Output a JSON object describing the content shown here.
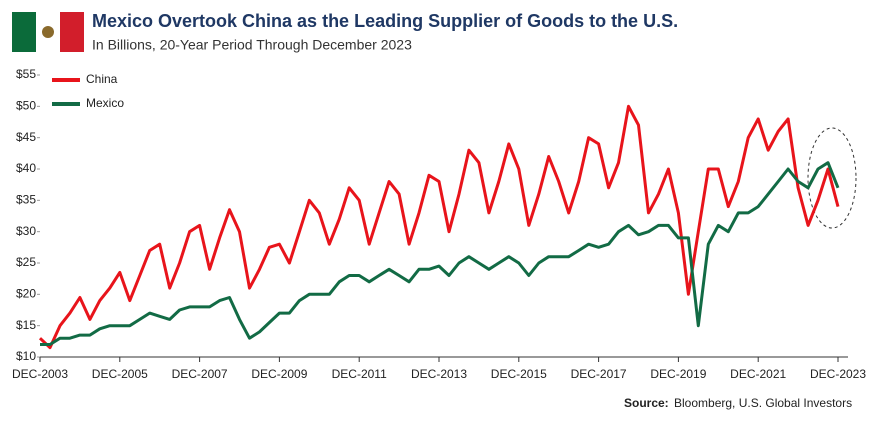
{
  "chart_data": {
    "type": "line",
    "title": "Mexico Overtook China as the Leading Supplier of Goods to the U.S.",
    "subtitle": "In Billions, 20-Year Period Through December 2023",
    "source_label": "Source:",
    "source": "Bloomberg, U.S. Global Investors",
    "x": [
      2003.92,
      2004.17,
      2004.42,
      2004.67,
      2004.92,
      2005.17,
      2005.42,
      2005.67,
      2005.92,
      2006.17,
      2006.42,
      2006.67,
      2006.92,
      2007.17,
      2007.42,
      2007.67,
      2007.92,
      2008.17,
      2008.42,
      2008.67,
      2008.92,
      2009.17,
      2009.42,
      2009.67,
      2009.92,
      2010.17,
      2010.42,
      2010.67,
      2010.92,
      2011.17,
      2011.42,
      2011.67,
      2011.92,
      2012.17,
      2012.42,
      2012.67,
      2012.92,
      2013.17,
      2013.42,
      2013.67,
      2013.92,
      2014.17,
      2014.42,
      2014.67,
      2014.92,
      2015.17,
      2015.42,
      2015.67,
      2015.92,
      2016.17,
      2016.42,
      2016.67,
      2016.92,
      2017.17,
      2017.42,
      2017.67,
      2017.92,
      2018.17,
      2018.42,
      2018.67,
      2018.92,
      2019.17,
      2019.42,
      2019.67,
      2019.92,
      2020.17,
      2020.42,
      2020.67,
      2020.92,
      2021.17,
      2021.42,
      2021.67,
      2021.92,
      2022.17,
      2022.42,
      2022.67,
      2022.92,
      2023.17,
      2023.42,
      2023.67,
      2023.92
    ],
    "series": [
      {
        "name": "China",
        "color": "#e8141b",
        "values": [
          13,
          11.5,
          15,
          17,
          19.5,
          16,
          19,
          21,
          23.5,
          19,
          23,
          27,
          28,
          21,
          25,
          30,
          31,
          24,
          29,
          33.5,
          30,
          21,
          24,
          27.5,
          28,
          25,
          30,
          35,
          33,
          28,
          32,
          37,
          35,
          28,
          33,
          38,
          36,
          28,
          33,
          39,
          38,
          30,
          36,
          43,
          41,
          33,
          38,
          44,
          40,
          31,
          36,
          42,
          38,
          33,
          38,
          45,
          44,
          37,
          41,
          50,
          47,
          33,
          36,
          40,
          33,
          20,
          30,
          40,
          40,
          34,
          38,
          45,
          48,
          43,
          46,
          48,
          37,
          31,
          35,
          40,
          34
        ]
      },
      {
        "name": "Mexico",
        "color": "#126b45",
        "values": [
          12,
          12,
          13,
          13,
          13.5,
          13.5,
          14.5,
          15,
          15,
          15,
          16,
          17,
          16.5,
          16,
          17.5,
          18,
          18,
          18,
          19,
          19.5,
          16,
          13,
          14,
          15.5,
          17,
          17,
          19,
          20,
          20,
          20,
          22,
          23,
          23,
          22,
          23,
          24,
          23,
          22,
          24,
          24,
          24.5,
          23,
          25,
          26,
          25,
          24,
          25,
          26,
          25,
          23,
          25,
          26,
          26,
          26,
          27,
          28,
          27.5,
          28,
          30,
          31,
          29.5,
          30,
          31,
          31,
          29,
          29,
          15,
          28,
          31,
          30,
          33,
          33,
          34,
          36,
          38,
          40,
          38,
          37,
          40,
          41,
          37
        ]
      }
    ],
    "xlim": [
      2003.92,
      2023.92
    ],
    "xticks": [
      {
        "value": 2003.92,
        "label": "DEC-2003"
      },
      {
        "value": 2005.92,
        "label": "DEC-2005"
      },
      {
        "value": 2007.92,
        "label": "DEC-2007"
      },
      {
        "value": 2009.92,
        "label": "DEC-2009"
      },
      {
        "value": 2011.92,
        "label": "DEC-2011"
      },
      {
        "value": 2013.92,
        "label": "DEC-2013"
      },
      {
        "value": 2015.92,
        "label": "DEC-2015"
      },
      {
        "value": 2017.92,
        "label": "DEC-2017"
      },
      {
        "value": 2019.92,
        "label": "DEC-2019"
      },
      {
        "value": 2021.92,
        "label": "DEC-2021"
      },
      {
        "value": 2023.92,
        "label": "DEC-2023"
      }
    ],
    "ylim": [
      10,
      55
    ],
    "yticks": [
      {
        "value": 10,
        "label": "$10"
      },
      {
        "value": 15,
        "label": "$15"
      },
      {
        "value": 20,
        "label": "$20"
      },
      {
        "value": 25,
        "label": "$25"
      },
      {
        "value": 30,
        "label": "$30"
      },
      {
        "value": 35,
        "label": "$35"
      },
      {
        "value": 40,
        "label": "$40"
      },
      {
        "value": 45,
        "label": "$45"
      },
      {
        "value": 50,
        "label": "$50"
      },
      {
        "value": 55,
        "label": "$55"
      }
    ],
    "grid": false,
    "legend": "top-left"
  }
}
